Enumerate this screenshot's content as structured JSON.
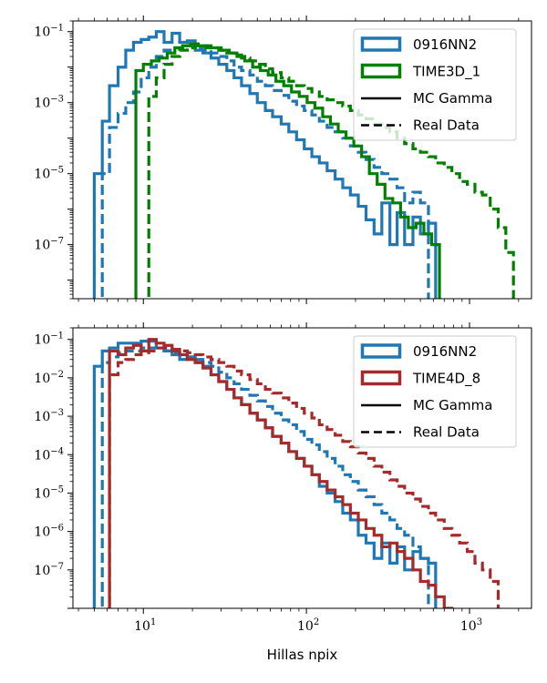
{
  "chart_data": [
    {
      "type": "histogram-step",
      "xscale": "log",
      "yscale": "log",
      "xlim": [
        3.7,
        2400
      ],
      "ylim": [
        3e-09,
        0.2
      ],
      "xticks": [
        {
          "value": 10,
          "label": "10^1"
        },
        {
          "value": 100,
          "label": "10^2"
        },
        {
          "value": 1000,
          "label": "10^3"
        }
      ],
      "yticks": [
        {
          "value": 0.1,
          "label": "10^-1"
        },
        {
          "value": 0.001,
          "label": "10^-3"
        },
        {
          "value": 1e-05,
          "label": "10^-5"
        },
        {
          "value": 1e-07,
          "label": "10^-7"
        }
      ],
      "xlabel": "",
      "legend_position": "top-right",
      "legend": [
        {
          "label": "0916NN2",
          "kind": "patch",
          "color": "#1f77b4"
        },
        {
          "label": "TIME3D_1",
          "kind": "patch",
          "color": "#008000"
        },
        {
          "label": "MC Gamma",
          "kind": "line",
          "style": "solid",
          "color": "#000000"
        },
        {
          "label": "Real Data",
          "kind": "line",
          "style": "dashed",
          "color": "#000000"
        }
      ],
      "series": [
        {
          "name": "0916NN2 (MC Gamma)",
          "color": "#1f77b4",
          "style": "solid",
          "edges": [
            5,
            5.6,
            6.2,
            7,
            7.8,
            8.7,
            9.7,
            10.8,
            12,
            13.4,
            15,
            16.7,
            18.6,
            20.8,
            23.2,
            26,
            29,
            32.5,
            36,
            40,
            45,
            50,
            56,
            62,
            70,
            78,
            87,
            97,
            108,
            120,
            134,
            150,
            167,
            186,
            208,
            232,
            260,
            290,
            325,
            360,
            400,
            450,
            500,
            560,
            620
          ],
          "values": [
            1e-05,
            0.0003,
            0.003,
            0.01,
            0.03,
            0.05,
            0.06,
            0.07,
            0.1,
            0.05,
            0.09,
            0.05,
            0.055,
            0.03,
            0.025,
            0.018,
            0.012,
            0.008,
            0.005,
            0.003,
            0.0018,
            0.001,
            0.0006,
            0.0004,
            0.00025,
            0.00015,
            9e-05,
            5e-05,
            3e-05,
            2e-05,
            1.2e-05,
            7e-06,
            4e-06,
            2.5e-06,
            1.2e-06,
            5e-07,
            2e-07,
            1.5e-06,
            1e-07,
            8e-07,
            1e-07,
            6e-07,
            2e-07,
            4e-07
          ]
        },
        {
          "name": "0916NN2 (Real Data)",
          "color": "#1f77b4",
          "style": "dashed",
          "edges": [
            5.6,
            6.2,
            7,
            7.8,
            8.7,
            9.7,
            10.8,
            12,
            13.4,
            15,
            16.7,
            18.6,
            20.8,
            23.2,
            26,
            29,
            32.5,
            36,
            40,
            45,
            50,
            56,
            62,
            70,
            78,
            87,
            97,
            108,
            120,
            134,
            150,
            167,
            186,
            208,
            232,
            260,
            290,
            325,
            360,
            400,
            450,
            500,
            560
          ],
          "values": [
            1e-05,
            0.0002,
            0.0005,
            0.001,
            0.002,
            0.005,
            0.01,
            0.02,
            0.03,
            0.035,
            0.035,
            0.04,
            0.035,
            0.03,
            0.025,
            0.02,
            0.015,
            0.01,
            0.008,
            0.006,
            0.004,
            0.003,
            0.0022,
            0.0016,
            0.0011,
            0.0008,
            0.0006,
            0.00045,
            0.0003,
            0.0002,
            0.00015,
            0.0001,
            6e-05,
            4e-05,
            2.5e-05,
            1.5e-05,
            1e-05,
            7e-06,
            4e-06,
            1.5e-06,
            3e-06,
            1.5e-06
          ]
        },
        {
          "name": "TIME3D_1 (MC Gamma)",
          "color": "#008000",
          "style": "solid",
          "edges": [
            9,
            10,
            11.2,
            12.5,
            14,
            15.6,
            17.4,
            19.4,
            21.7,
            24.2,
            27,
            30,
            33.6,
            37.5,
            41.9,
            46.8,
            52.2,
            58.3,
            65,
            72.6,
            81,
            90.4,
            101,
            112.7,
            125.8,
            140.4,
            156.7,
            175,
            195.3,
            218,
            243.3,
            271.6,
            303.2,
            338.4,
            377.7,
            421.6,
            470.6,
            525.3,
            586.3,
            654.5
          ],
          "values": [
            0.008,
            0.012,
            0.015,
            0.018,
            0.025,
            0.035,
            0.04,
            0.045,
            0.04,
            0.035,
            0.035,
            0.03,
            0.025,
            0.02,
            0.015,
            0.01,
            0.008,
            0.006,
            0.004,
            0.003,
            0.002,
            0.0015,
            0.001,
            0.0007,
            0.0004,
            0.00025,
            0.00015,
            0.0001,
            6e-05,
            3e-05,
            1e-05,
            5e-06,
            2e-06,
            1.5e-06,
            6e-07,
            3e-07,
            4e-07,
            2e-07,
            1e-07
          ]
        },
        {
          "name": "TIME3D_1 (Real Data)",
          "color": "#008000",
          "style": "dashed",
          "edges": [
            10.8,
            12,
            13.4,
            15,
            16.7,
            18.6,
            20.8,
            23.2,
            26,
            29,
            32.5,
            36,
            40,
            45,
            50,
            56,
            62,
            70,
            78,
            87,
            97,
            108,
            120,
            134,
            150,
            167,
            186,
            208,
            232,
            260,
            290,
            325,
            360,
            400,
            450,
            500,
            560,
            620,
            700,
            780,
            870,
            970,
            1080,
            1200,
            1340,
            1500,
            1670,
            1860
          ],
          "values": [
            0.0015,
            0.005,
            0.012,
            0.02,
            0.03,
            0.035,
            0.04,
            0.04,
            0.035,
            0.03,
            0.025,
            0.022,
            0.018,
            0.015,
            0.012,
            0.009,
            0.007,
            0.005,
            0.004,
            0.003,
            0.0025,
            0.002,
            0.0015,
            0.0012,
            0.001,
            0.0008,
            0.0006,
            0.00045,
            0.00035,
            0.00025,
            0.0002,
            0.00015,
            0.0001,
            7e-05,
            5e-05,
            4e-05,
            3e-05,
            2e-05,
            1.5e-05,
            1e-05,
            6e-06,
            5e-06,
            3e-06,
            2.5e-06,
            1e-06,
            3e-07,
            6e-08
          ]
        }
      ]
    },
    {
      "type": "histogram-step",
      "xscale": "log",
      "yscale": "log",
      "xlim": [
        3.7,
        2400
      ],
      "ylim": [
        1e-08,
        0.2
      ],
      "xticks": [
        {
          "value": 10,
          "label": "10^1"
        },
        {
          "value": 100,
          "label": "10^2"
        },
        {
          "value": 1000,
          "label": "10^3"
        }
      ],
      "yticks": [
        {
          "value": 0.1,
          "label": "10^-1"
        },
        {
          "value": 0.01,
          "label": "10^-2"
        },
        {
          "value": 0.001,
          "label": "10^-3"
        },
        {
          "value": 0.0001,
          "label": "10^-4"
        },
        {
          "value": 1e-05,
          "label": "10^-5"
        },
        {
          "value": 1e-06,
          "label": "10^-6"
        },
        {
          "value": 1e-07,
          "label": "10^-7"
        }
      ],
      "xlabel": "Hillas npix",
      "legend_position": "top-right",
      "legend": [
        {
          "label": "0916NN2",
          "kind": "patch",
          "color": "#1f77b4"
        },
        {
          "label": "TIME4D_8",
          "kind": "patch",
          "color": "#a52a2a"
        },
        {
          "label": "MC Gamma",
          "kind": "line",
          "style": "solid",
          "color": "#000000"
        },
        {
          "label": "Real Data",
          "kind": "line",
          "style": "dashed",
          "color": "#000000"
        }
      ],
      "series": [
        {
          "name": "0916NN2 (MC Gamma)",
          "color": "#1f77b4",
          "style": "solid",
          "edges": [
            5,
            5.6,
            6.2,
            7,
            7.8,
            8.7,
            9.7,
            10.8,
            12,
            13.4,
            15,
            16.7,
            18.6,
            20.8,
            23.2,
            26,
            29,
            32.5,
            36,
            40,
            45,
            50,
            56,
            62,
            70,
            78,
            87,
            97,
            108,
            120,
            134,
            150,
            167,
            186,
            208,
            232,
            260,
            290,
            325,
            360,
            400,
            450,
            500,
            560,
            620
          ],
          "values": [
            0.02,
            0.05,
            0.06,
            0.08,
            0.08,
            0.08,
            0.09,
            0.09,
            0.06,
            0.05,
            0.04,
            0.03,
            0.035,
            0.025,
            0.02,
            0.012,
            0.008,
            0.005,
            0.003,
            0.002,
            0.0012,
            0.0008,
            0.0005,
            0.0003,
            0.0002,
            0.00012,
            8e-05,
            5e-05,
            3e-05,
            1.5e-05,
            1e-05,
            6e-06,
            3e-06,
            2e-06,
            8e-07,
            5e-07,
            2e-07,
            5e-07,
            1.5e-07,
            4e-07,
            1e-07,
            3e-07,
            2e-07,
            1.5e-07
          ]
        },
        {
          "name": "0916NN2 (Real Data)",
          "color": "#1f77b4",
          "style": "dashed",
          "edges": [
            5.6,
            6.2,
            7,
            7.8,
            8.7,
            9.7,
            10.8,
            12,
            13.4,
            15,
            16.7,
            18.6,
            20.8,
            23.2,
            26,
            29,
            32.5,
            36,
            40,
            45,
            50,
            56,
            62,
            70,
            78,
            87,
            97,
            108,
            120,
            134,
            150,
            167,
            186,
            208,
            232,
            260,
            290,
            325,
            360,
            400,
            450,
            500,
            560
          ],
          "values": [
            0.025,
            0.035,
            0.045,
            0.05,
            0.05,
            0.06,
            0.06,
            0.06,
            0.05,
            0.045,
            0.04,
            0.035,
            0.03,
            0.025,
            0.02,
            0.014,
            0.01,
            0.007,
            0.005,
            0.0035,
            0.0025,
            0.0018,
            0.0012,
            0.0008,
            0.0006,
            0.0004,
            0.00025,
            0.00018,
            0.00012,
            8e-05,
            5e-05,
            3e-05,
            2e-05,
            1.2e-05,
            8e-06,
            5e-06,
            3e-06,
            2e-06,
            1.2e-06,
            8e-07,
            4e-07,
            2e-07
          ]
        },
        {
          "name": "TIME4D_8 (MC Gamma)",
          "color": "#a52a2a",
          "style": "solid",
          "edges": [
            6.2,
            7,
            7.8,
            8.7,
            9.7,
            10.8,
            12,
            13.4,
            15,
            16.7,
            18.6,
            20.8,
            23.2,
            26,
            29,
            32.5,
            36,
            40,
            45,
            50,
            56,
            62,
            70,
            78,
            87,
            97,
            108,
            120,
            134,
            150,
            167,
            186,
            208,
            232,
            260,
            290,
            325,
            360,
            400,
            450,
            500,
            560,
            620,
            700,
            780
          ],
          "values": [
            0.05,
            0.04,
            0.06,
            0.07,
            0.05,
            0.1,
            0.08,
            0.07,
            0.05,
            0.04,
            0.03,
            0.025,
            0.018,
            0.012,
            0.008,
            0.005,
            0.003,
            0.002,
            0.0012,
            0.0008,
            0.0005,
            0.0003,
            0.0002,
            0.00012,
            8e-05,
            5e-05,
            3e-05,
            2e-05,
            1.2e-05,
            8e-06,
            5e-06,
            3e-06,
            2e-06,
            1.2e-06,
            8e-07,
            4e-07,
            5e-07,
            3e-07,
            2e-07,
            1e-07,
            5e-08,
            4e-08,
            2e-08,
            1e-08
          ]
        },
        {
          "name": "TIME4D_8 (Real Data)",
          "color": "#a52a2a",
          "style": "dashed",
          "edges": [
            6.2,
            7,
            7.8,
            8.7,
            9.7,
            10.8,
            12,
            13.4,
            15,
            16.7,
            18.6,
            20.8,
            23.2,
            26,
            29,
            32.5,
            36,
            40,
            45,
            50,
            56,
            62,
            70,
            78,
            87,
            97,
            108,
            120,
            134,
            150,
            167,
            186,
            208,
            232,
            260,
            290,
            325,
            360,
            400,
            450,
            500,
            560,
            620,
            700,
            780,
            870,
            970,
            1080,
            1200,
            1340,
            1500
          ],
          "values": [
            0.012,
            0.025,
            0.03,
            0.04,
            0.045,
            0.05,
            0.06,
            0.06,
            0.055,
            0.05,
            0.045,
            0.04,
            0.035,
            0.03,
            0.025,
            0.02,
            0.015,
            0.012,
            0.009,
            0.007,
            0.005,
            0.004,
            0.003,
            0.0022,
            0.0016,
            0.0012,
            0.0009,
            0.0006,
            0.00045,
            0.00032,
            0.00022,
            0.00016,
            0.00011,
            8e-05,
            5e-05,
            3.5e-05,
            2.2e-05,
            1.5e-05,
            1e-05,
            7e-06,
            4.5e-06,
            3e-06,
            2e-06,
            1.2e-06,
            8e-07,
            5e-07,
            3e-07,
            1.5e-07,
            1e-07,
            5e-08
          ]
        }
      ]
    }
  ]
}
